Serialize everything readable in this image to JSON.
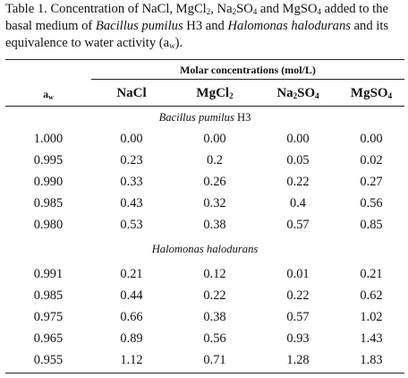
{
  "caption": {
    "prefix": "Table 1. Concentration of NaCl, MgCl",
    "sub1": "2",
    "part2": ", Na",
    "sub2": "2",
    "part3": "SO",
    "sub3": "4",
    "part4": " and MgSO",
    "sub4": "4",
    "part5": " added to the basal medium of ",
    "organism1": "Bacillus pumilus",
    "part6": " H3 and ",
    "organism2": "Halomonas halodurans",
    "part7": " and its equivalence to water activity (a",
    "sub5": "w",
    "part8": ")."
  },
  "table": {
    "spanning_header": "Molar concentrations (mol/L)",
    "columns": [
      {
        "main": "a",
        "sub": "w",
        "tail": ""
      },
      {
        "main": "NaCl",
        "sub": "",
        "tail": ""
      },
      {
        "main": "MgCl",
        "sub": "2",
        "tail": ""
      },
      {
        "main": "Na",
        "sub": "2",
        "tail": "SO",
        "sub2": "4"
      },
      {
        "main": "MgSO",
        "sub": "4",
        "tail": ""
      }
    ],
    "sections": [
      {
        "title_italic": "Bacillus pumilus",
        "title_rest": " H3",
        "rows": [
          [
            "1.000",
            "0.00",
            "0.00",
            "0.00",
            "0.00"
          ],
          [
            "0.995",
            "0.23",
            "0.2",
            "0.05",
            "0.02"
          ],
          [
            "0.990",
            "0.33",
            "0.26",
            "0.22",
            "0.27"
          ],
          [
            "0.985",
            "0.43",
            "0.32",
            "0.4",
            "0.56"
          ],
          [
            "0.980",
            "0.53",
            "0.38",
            "0.57",
            "0.85"
          ]
        ]
      },
      {
        "title_italic": "Halomonas halodurans",
        "title_rest": "",
        "rows": [
          [
            "0.991",
            "0.21",
            "0.12",
            "0.01",
            "0.21"
          ],
          [
            "0.985",
            "0.44",
            "0.22",
            "0.22",
            "0.62"
          ],
          [
            "0.975",
            "0.66",
            "0.38",
            "0.57",
            "1.02"
          ],
          [
            "0.965",
            "0.89",
            "0.56",
            "0.93",
            "1.43"
          ],
          [
            "0.955",
            "1.12",
            "0.71",
            "1.28",
            "1.83"
          ]
        ]
      }
    ]
  }
}
